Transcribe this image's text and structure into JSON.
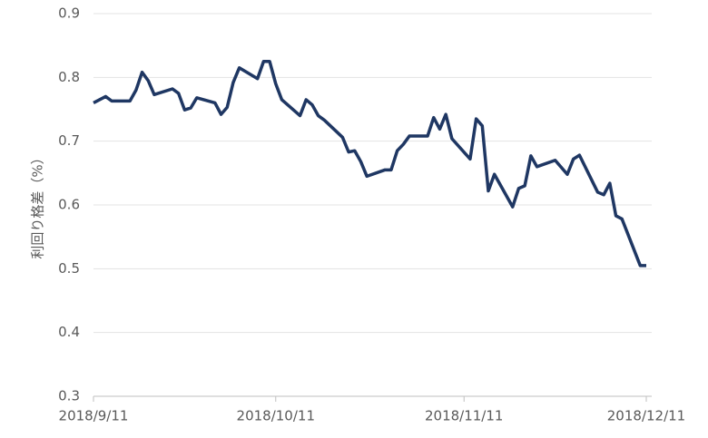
{
  "chart_data": {
    "type": "line",
    "ylabel": "利回り格差（%）",
    "x": [
      "2018/9/11",
      "2018/9/13",
      "2018/9/14",
      "2018/9/17",
      "2018/9/18",
      "2018/9/19",
      "2018/9/20",
      "2018/9/21",
      "2018/9/24",
      "2018/9/25",
      "2018/9/26",
      "2018/9/27",
      "2018/9/28",
      "2018/10/1",
      "2018/10/2",
      "2018/10/3",
      "2018/10/4",
      "2018/10/5",
      "2018/10/8",
      "2018/10/9",
      "2018/10/10",
      "2018/10/11",
      "2018/10/12",
      "2018/10/15",
      "2018/10/16",
      "2018/10/17",
      "2018/10/18",
      "2018/10/19",
      "2018/10/22",
      "2018/10/23",
      "2018/10/24",
      "2018/10/25",
      "2018/10/26",
      "2018/10/29",
      "2018/10/30",
      "2018/10/31",
      "2018/11/1",
      "2018/11/2",
      "2018/11/5",
      "2018/11/6",
      "2018/11/7",
      "2018/11/8",
      "2018/11/9",
      "2018/11/12",
      "2018/11/13",
      "2018/11/14",
      "2018/11/15",
      "2018/11/16",
      "2018/11/19",
      "2018/11/20",
      "2018/11/21",
      "2018/11/22",
      "2018/11/23",
      "2018/11/26",
      "2018/11/28",
      "2018/11/29",
      "2018/11/30",
      "2018/12/3",
      "2018/12/4",
      "2018/12/5",
      "2018/12/6",
      "2018/12/7",
      "2018/12/10",
      "2018/12/11"
    ],
    "series": [
      {
        "color": "#1f3763",
        "values": [
          0.76,
          0.77,
          0.763,
          0.763,
          0.78,
          0.808,
          0.795,
          0.773,
          0.782,
          0.775,
          0.749,
          0.752,
          0.768,
          0.76,
          0.742,
          0.753,
          0.792,
          0.815,
          0.798,
          0.825,
          0.825,
          0.79,
          0.765,
          0.74,
          0.765,
          0.757,
          0.74,
          0.733,
          0.706,
          0.683,
          0.685,
          0.668,
          0.645,
          0.655,
          0.655,
          0.685,
          0.695,
          0.708,
          0.708,
          0.737,
          0.719,
          0.742,
          0.704,
          0.672,
          0.735,
          0.724,
          0.622,
          0.648,
          0.597,
          0.626,
          0.63,
          0.677,
          0.66,
          0.67,
          0.648,
          0.672,
          0.678,
          0.62,
          0.616,
          0.634,
          0.583,
          0.578,
          0.505,
          0.505
        ]
      }
    ],
    "xlim": [
      "2018/9/11",
      "2018/12/11"
    ],
    "xticks": [
      "2018/9/11",
      "2018/10/11",
      "2018/11/11",
      "2018/12/11"
    ],
    "ylim": [
      0.3,
      0.9
    ],
    "yticks": [
      0.3,
      0.4,
      0.5,
      0.6,
      0.7,
      0.8,
      0.9
    ],
    "grid": true
  }
}
